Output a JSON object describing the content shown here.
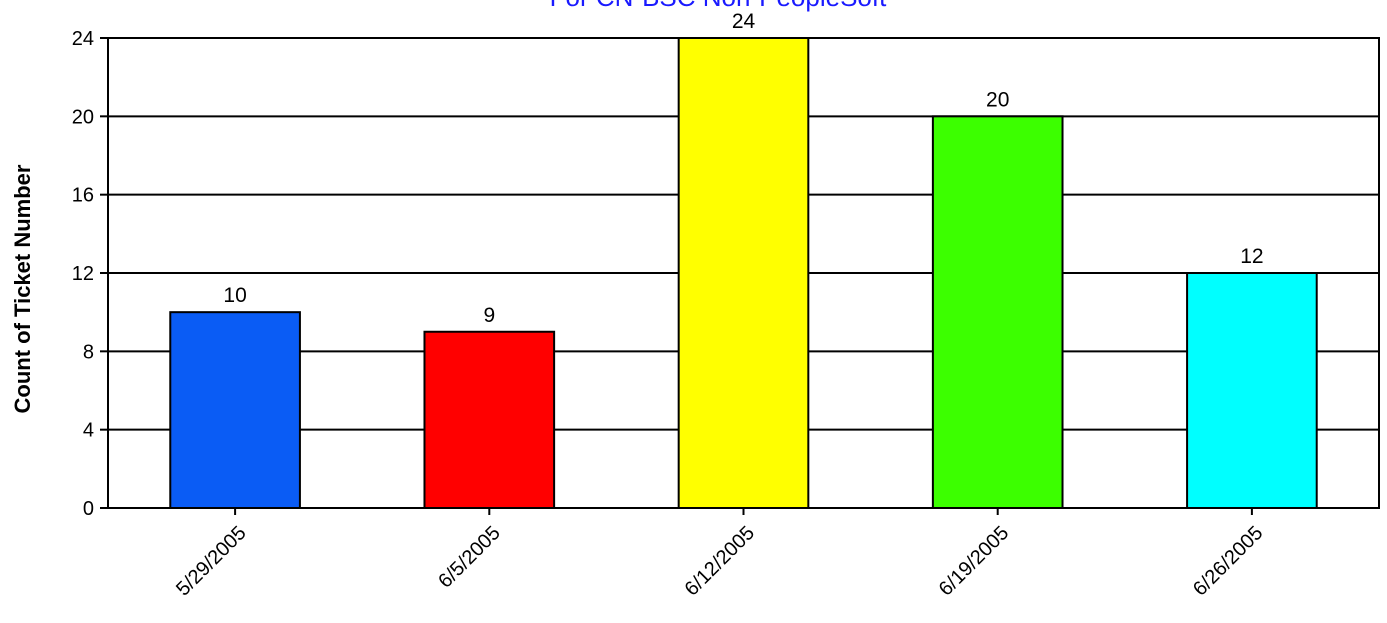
{
  "chart_data": {
    "type": "bar",
    "title": "For CN-BSC Non-PeopleSoft",
    "xlabel": "",
    "ylabel": "Count of Ticket Number",
    "categories": [
      "5/29/2005",
      "6/5/2005",
      "6/12/2005",
      "6/19/2005",
      "6/26/2005"
    ],
    "values": [
      10,
      9,
      24,
      20,
      12
    ],
    "colors": [
      "#0a5cf5",
      "#ff0000",
      "#ffff00",
      "#3cff00",
      "#00ffff"
    ],
    "ylim": [
      0,
      24
    ],
    "yticks": [
      0,
      4,
      8,
      12,
      16,
      20,
      24
    ],
    "grid": true,
    "legend": "none",
    "data_labels": true
  }
}
